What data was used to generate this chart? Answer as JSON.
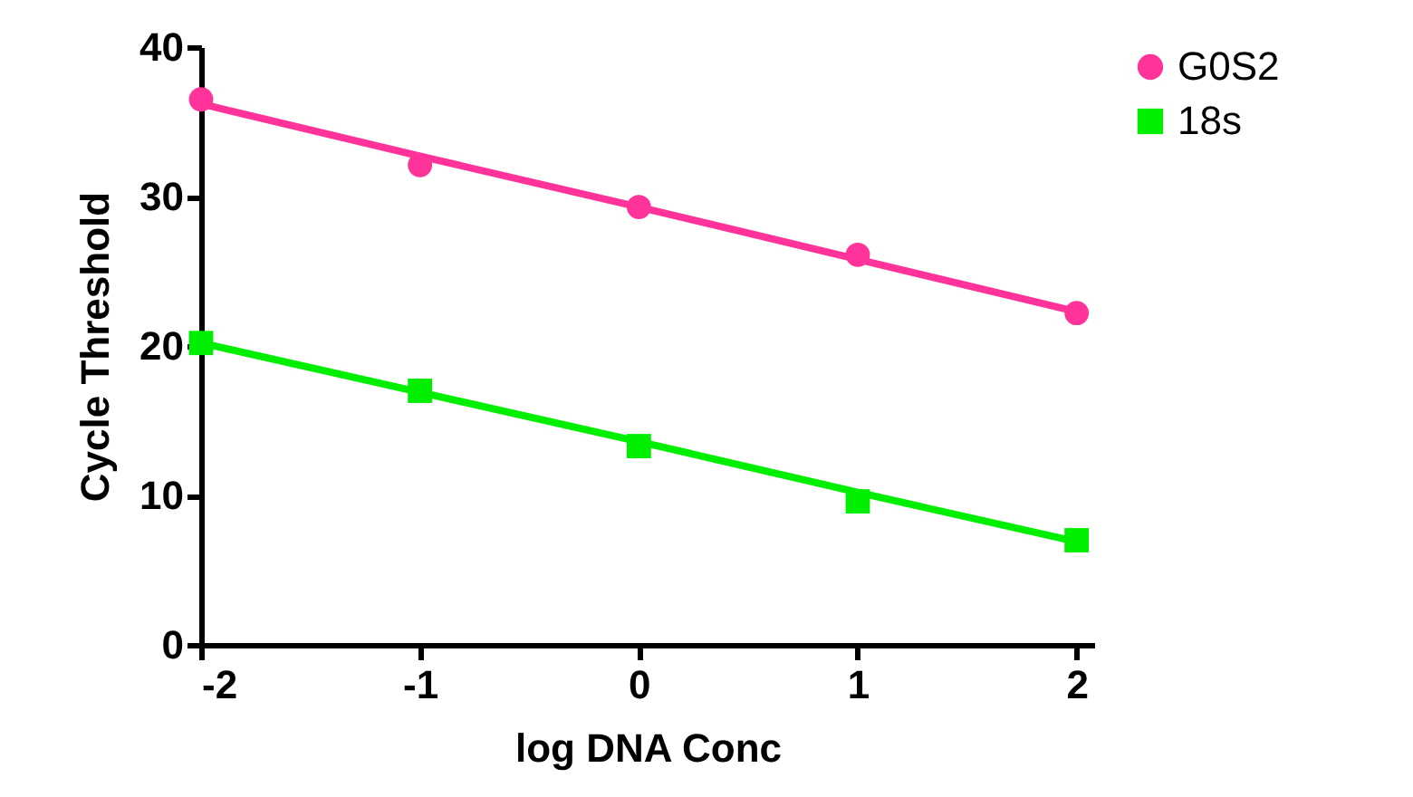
{
  "chart_data": {
    "type": "scatter",
    "xlabel": "log DNA Conc",
    "ylabel": "Cycle Threshold",
    "x": [
      -2,
      -1,
      0,
      1,
      2
    ],
    "xlim": [
      -2,
      2.08
    ],
    "xticks": [
      -2,
      -1,
      0,
      1,
      2
    ],
    "ylim": [
      0,
      40
    ],
    "yticks": [
      0,
      10,
      20,
      30,
      40
    ],
    "legend": "top right",
    "series": [
      {
        "name": "G0S2",
        "color": "#ff3399",
        "marker": "circle",
        "values": [
          36.5,
          32.1,
          29.3,
          26.1,
          22.2
        ]
      },
      {
        "name": "18s",
        "color": "#00ee00",
        "marker": "square",
        "values": [
          20.2,
          17.0,
          13.3,
          9.6,
          7.0
        ]
      },
      {
        "type": "line",
        "color": "#ff3399",
        "values": [
          36.2,
          32.7,
          29.3,
          25.8,
          22.3
        ]
      },
      {
        "type": "line",
        "color": "#00ee00",
        "values": [
          20.2,
          16.9,
          13.6,
          10.2,
          6.9
        ]
      }
    ]
  }
}
